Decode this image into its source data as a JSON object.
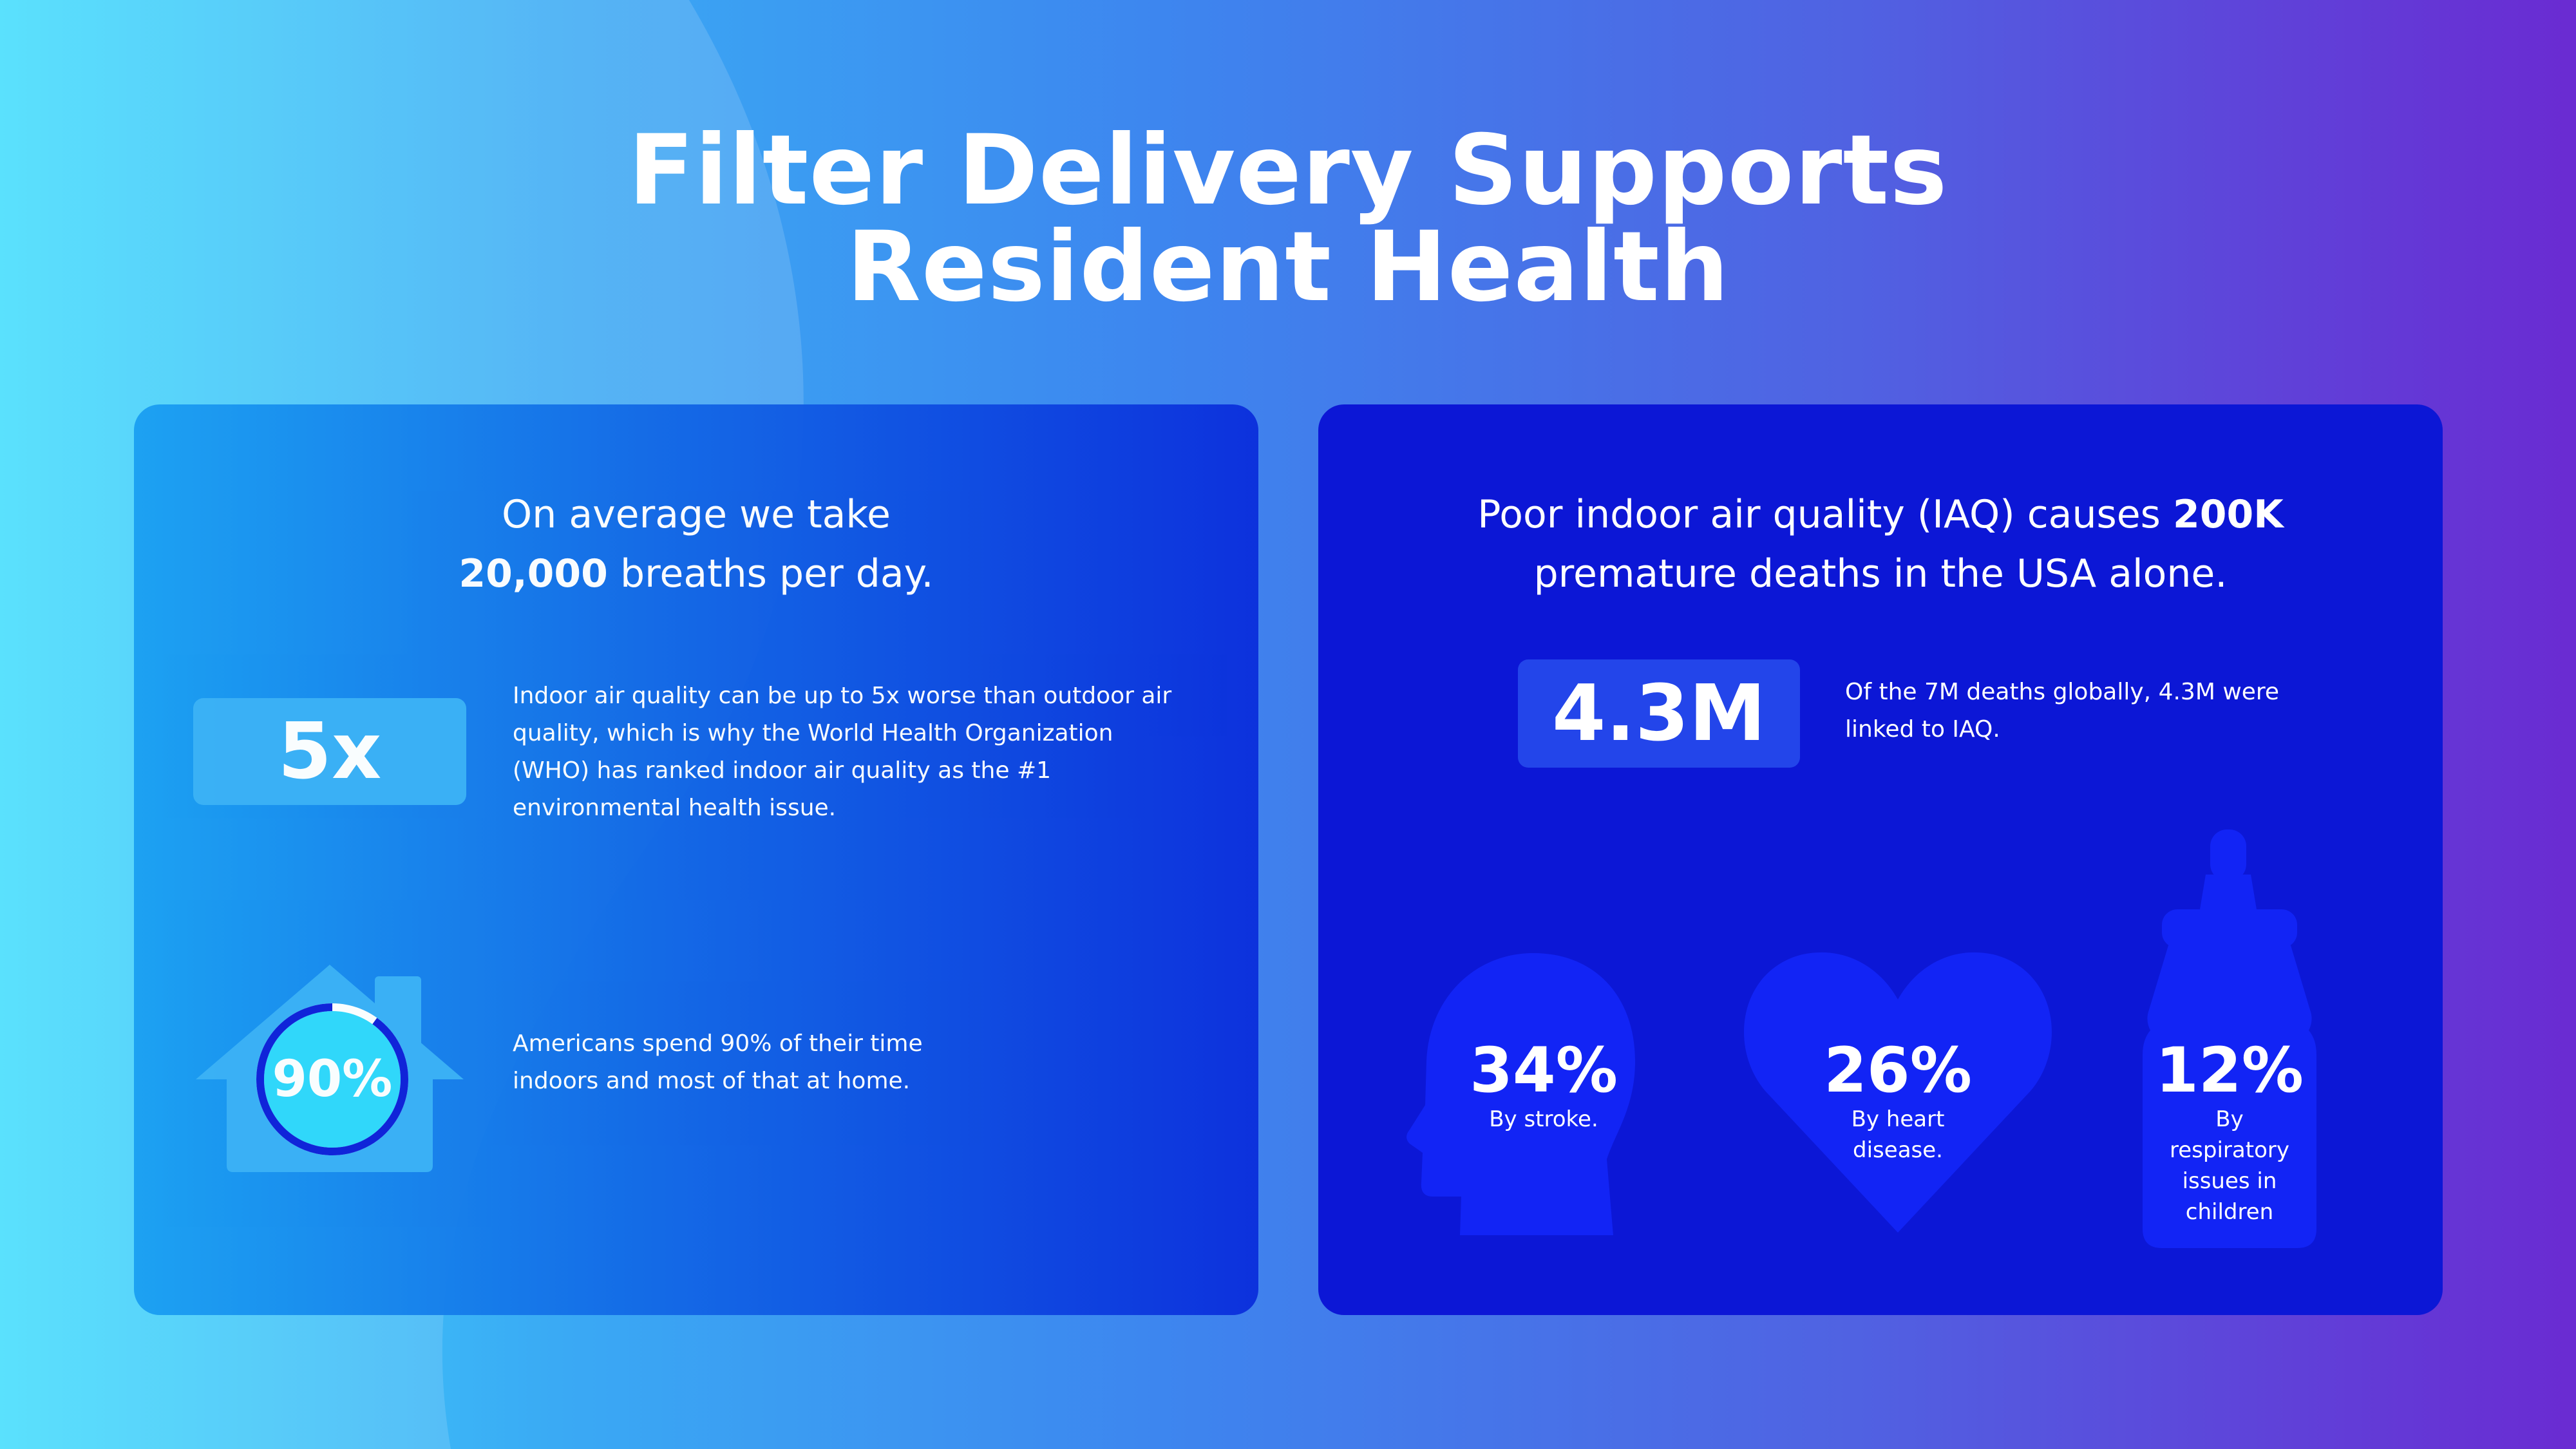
{
  "title_line1": "Filter Delivery Supports",
  "title_line2": "Resident Health",
  "left": {
    "intro_line1": "On average we take",
    "intro_bold": "20,000",
    "intro_rest": " breaths per day.",
    "stat1_value": "5x",
    "stat1_text": "Indoor air quality can be up to 5x worse than outdoor air quality, which is why the World Health Organization (WHO) has ranked indoor air quality as the #1 environmental health issue.",
    "stat2_value": "90%",
    "stat2_progress": 0.9,
    "stat2_text": "Americans spend 90% of their time indoors and most of that at home."
  },
  "right": {
    "intro_part1": "Poor indoor air quality (IAQ) causes ",
    "intro_bold": "200K",
    "intro_line2": "premature deaths in the USA alone.",
    "stat_value": "4.3M",
    "stat_text": "Of the 7M deaths globally, 4.3M were linked to IAQ.",
    "causes": [
      {
        "icon": "head-profile-icon",
        "value": "34%",
        "label": "By stroke."
      },
      {
        "icon": "heart-icon",
        "value": "26%",
        "label": "By heart disease."
      },
      {
        "icon": "baby-bottle-icon",
        "value": "12%",
        "label": "By respiratory issues in children"
      }
    ]
  },
  "colors": {
    "bg_left": "#3fdcfd",
    "bg_right": "#6a2bd2",
    "card_right": "#0c17d6",
    "shape_blue": "#1224f5",
    "box_light": "#3ab0f5",
    "box_dark": "#2345ea",
    "ring": "#0e1fd8",
    "ring_fill": "#2fd8fb"
  }
}
